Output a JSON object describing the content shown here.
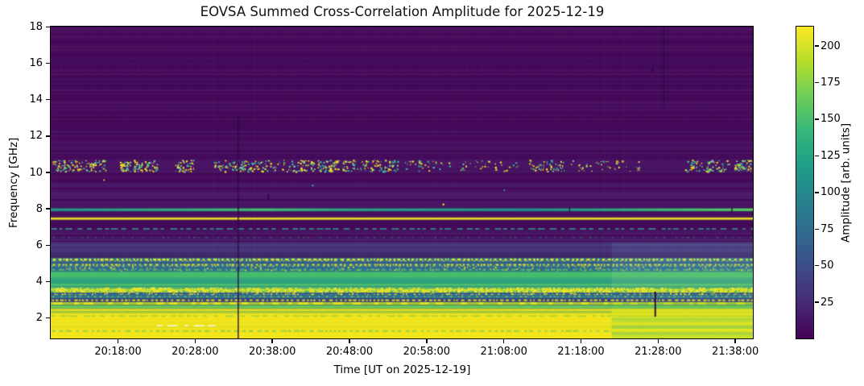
{
  "figure": {
    "background": "#ffffff"
  },
  "chart_data": {
    "type": "heatmap",
    "title": "EOVSA Summed Cross-Correlation Amplitude for 2025-12-19",
    "xlabel": "Time [UT on 2025-12-19]",
    "ylabel": "Frequency [GHz]",
    "x_ticks": [
      "20:18:00",
      "20:28:00",
      "20:38:00",
      "20:48:00",
      "20:58:00",
      "21:08:00",
      "21:18:00",
      "21:28:00",
      "21:38:00"
    ],
    "y_ticks": [
      2,
      4,
      6,
      8,
      10,
      12,
      14,
      16,
      18
    ],
    "x_range": [
      "20:09:20",
      "21:40:20"
    ],
    "ylim": [
      0.85,
      18
    ],
    "grid": false,
    "colorbar": {
      "label": "Amplitude [arb. units]",
      "ticks": [
        25,
        50,
        75,
        100,
        125,
        150,
        175,
        200
      ],
      "vmin": 0,
      "vmax": 213,
      "colormap": "viridis",
      "gradient": [
        "#440154",
        "#482878",
        "#3e4a89",
        "#31688e",
        "#26828e",
        "#1f9e89",
        "#35b779",
        "#6ece58",
        "#b5de2b",
        "#fde725"
      ]
    },
    "heatmap": {
      "background": "#45095a",
      "texture": {
        "seed": 987654321,
        "h_alpha_under": 0.05,
        "h_alpha_over": 0.018,
        "v_alpha": 0.015
      },
      "bands": [
        {
          "type": "solid",
          "f": [
            11.15,
            11.5
          ],
          "color": "#4a1566",
          "alpha": 0.55
        },
        {
          "type": "solid",
          "f": [
            12.1,
            12.35
          ],
          "color": "#481263",
          "alpha": 0.5
        },
        {
          "type": "solid",
          "f": [
            14.8,
            15.1
          ],
          "color": "#481263",
          "alpha": 0.45
        },
        {
          "type": "solid",
          "f": [
            15.9,
            16.15
          ],
          "color": "#481263",
          "alpha": 0.4
        },
        {
          "type": "solid",
          "f": [
            13.4,
            13.6
          ],
          "color": "#481263",
          "alpha": 0.35
        },
        {
          "type": "solid",
          "f": [
            9.95,
            10.75
          ],
          "color": "#4c1a6b",
          "alpha": 0.5
        },
        {
          "type": "solid",
          "f": [
            9.15,
            9.4
          ],
          "color": "#4d2474",
          "alpha": 0.6
        },
        {
          "type": "solid",
          "f": [
            8.55,
            8.95
          ],
          "color": "#4c2271",
          "alpha": 0.6
        },
        {
          "type": "solid",
          "f": [
            8.1,
            8.4
          ],
          "color": "#4a1d6c",
          "alpha": 0.55
        },
        {
          "type": "solid",
          "f": [
            6.55,
            6.8
          ],
          "color": "#4a1f6e",
          "alpha": 0.5
        },
        {
          "type": "solid",
          "f": [
            6.2,
            6.45
          ],
          "color": "#483a78",
          "alpha": 0.35
        },
        {
          "type": "speckle",
          "f": [
            10.05,
            10.68
          ],
          "colors": [
            "#f8e626",
            "#e4e33c",
            "#29b694",
            "#3ec8a8",
            "#79d6b9"
          ],
          "weights": [
            0.42,
            0.13,
            0.22,
            0.15,
            0.08
          ],
          "count": 900,
          "dot": [
            1,
            2.3
          ],
          "clusters": [
            [
              0.04,
              0.038,
              0.95
            ],
            [
              0.125,
              0.027,
              0.85
            ],
            [
              0.19,
              0.015,
              0.4
            ],
            [
              0.255,
              0.023,
              0.5
            ],
            [
              0.323,
              0.052,
              1.0
            ],
            [
              0.395,
              0.015,
              0.5
            ],
            [
              0.455,
              0.04,
              0.9
            ],
            [
              0.535,
              0.035,
              0.3
            ],
            [
              0.62,
              0.045,
              0.3
            ],
            [
              0.705,
              0.026,
              0.45
            ],
            [
              0.79,
              0.05,
              0.35
            ],
            [
              0.935,
              0.032,
              0.65
            ],
            [
              0.985,
              0.012,
              0.5
            ]
          ]
        },
        {
          "type": "hline",
          "f": 7.93,
          "h": 6,
          "color": "#2a8f8c",
          "alpha": 0.22
        },
        {
          "type": "hline",
          "f": 7.93,
          "h": 3.2,
          "gradient": [
            [
              0,
              "#23938c"
            ],
            [
              0.18,
              "#33ab80"
            ],
            [
              0.3,
              "#46bf6e"
            ],
            [
              0.42,
              "#2da085"
            ],
            [
              0.55,
              "#27988a"
            ],
            [
              0.68,
              "#21908d"
            ],
            [
              0.78,
              "#2aa183"
            ],
            [
              0.88,
              "#3fba72"
            ],
            [
              0.97,
              "#52c766"
            ],
            [
              1,
              "#5ecf5f"
            ]
          ]
        },
        {
          "type": "hline",
          "f": 7.44,
          "h": 4.2,
          "color": "#c8b93a",
          "alpha": 0.28
        },
        {
          "type": "hline",
          "f": 7.44,
          "h": 2.3,
          "color": "#eee41c"
        },
        {
          "type": "dashline",
          "f": 6.87,
          "h": 1.8,
          "color": "#2f9f8c",
          "dash": [
            6,
            5
          ],
          "alpha": 0.85
        },
        {
          "type": "dashline",
          "f": 6.4,
          "h": 1.4,
          "color": "#2f9f8c",
          "dash": [
            2,
            9
          ],
          "alpha": 0.55
        },
        {
          "type": "solid",
          "f": [
            5.55,
            6.15
          ],
          "color": "#45397a",
          "alpha": 0.8
        },
        {
          "type": "hline",
          "f": 6.0,
          "h": 2.5,
          "color": "#4a4284",
          "alpha": 0.6
        },
        {
          "type": "hline",
          "f": 5.72,
          "h": 2,
          "color": "#4a4284",
          "alpha": 0.5
        },
        {
          "type": "solid",
          "f": [
            5.28,
            5.55
          ],
          "color": "#3f2f6a",
          "alpha": 0.85
        },
        {
          "type": "solid",
          "f": [
            4.55,
            5.28
          ],
          "color": "#2e7390"
        },
        {
          "type": "solid",
          "f": [
            4.97,
            5.07
          ],
          "color": "#3b5584",
          "alpha": 0.85
        },
        {
          "type": "solid",
          "f": [
            4.68,
            4.76
          ],
          "color": "#35608a",
          "alpha": 0.7
        },
        {
          "type": "dashline",
          "f": 5.19,
          "h": 2.4,
          "color": "#f4e622",
          "dash": [
            3,
            2.5
          ],
          "alpha": 0.95
        },
        {
          "type": "dashline",
          "f": 5.12,
          "h": 1.5,
          "color": "#e9e53a",
          "dash": [
            2,
            5
          ],
          "alpha": 0.65
        },
        {
          "type": "dashline",
          "f": 4.9,
          "h": 2.2,
          "color": "#f4e622",
          "dash": [
            2.5,
            3
          ],
          "alpha": 0.9
        },
        {
          "type": "dashline",
          "f": 4.82,
          "h": 1.5,
          "color": "#f4e622",
          "dash": [
            2,
            6
          ],
          "alpha": 0.6
        },
        {
          "type": "speckle",
          "f": [
            4.58,
            4.8
          ],
          "colors": [
            "#f4e622",
            "#6ec654"
          ],
          "weights": [
            0.8,
            0.2
          ],
          "count": 140,
          "dot": [
            1,
            1.8
          ]
        },
        {
          "type": "dashline",
          "f": 4.63,
          "h": 2,
          "color": "#5ec25f",
          "dash": [
            5,
            4
          ],
          "alpha": 0.8
        },
        {
          "type": "solid",
          "f": [
            3.68,
            4.55
          ],
          "color": "#36a977"
        },
        {
          "type": "solid",
          "f": [
            4.2,
            4.48
          ],
          "color": "#47bd6d"
        },
        {
          "type": "solid",
          "f": [
            3.86,
            4.12
          ],
          "color": "#2fa07e",
          "alpha": 0.9
        },
        {
          "type": "hline",
          "f": 3.79,
          "h": 2.2,
          "color": "#55c763",
          "alpha": 0.9
        },
        {
          "type": "solid",
          "f": [
            3.68,
            3.75
          ],
          "color": "#2d9b81",
          "alpha": 0.8
        },
        {
          "type": "solid",
          "f": [
            3.37,
            3.68
          ],
          "color": "#55b96c"
        },
        {
          "type": "speckle",
          "f": [
            3.38,
            3.66
          ],
          "colors": [
            "#f6e623",
            "#ffee3d",
            "#b5de2b"
          ],
          "weights": [
            0.65,
            0.2,
            0.15
          ],
          "count": 1500,
          "dot": [
            1.2,
            2.6
          ]
        },
        {
          "type": "hline",
          "f": 3.52,
          "h": 1.6,
          "color": "#d9e326",
          "alpha": 0.85
        },
        {
          "type": "solid",
          "f": [
            3.24,
            3.37
          ],
          "color": "#35618b"
        },
        {
          "type": "speckle",
          "f": [
            3.25,
            3.36
          ],
          "colors": [
            "#f6e623"
          ],
          "weights": [
            1
          ],
          "count": 260,
          "dot": [
            1,
            2
          ]
        },
        {
          "type": "solid",
          "f": [
            3.06,
            3.24
          ],
          "color": "#2e7a8e"
        },
        {
          "type": "dashline",
          "f": 3.15,
          "h": 1.6,
          "color": "#f0e522",
          "dash": [
            2,
            6
          ],
          "alpha": 0.6
        },
        {
          "type": "solid",
          "f": [
            2.84,
            3.06
          ],
          "color": "#394a7c"
        },
        {
          "type": "dashline",
          "f": 2.95,
          "h": 2,
          "color": "#f0e522",
          "dash": [
            3,
            3
          ],
          "alpha": 0.9
        },
        {
          "type": "hline",
          "f": 2.78,
          "h": 3,
          "color": "#b7da2f",
          "alpha": 0.9
        },
        {
          "type": "dashline",
          "f": 2.78,
          "h": 3,
          "color": "#eae41f",
          "dash": [
            9,
            14
          ],
          "alpha": 0.9
        },
        {
          "type": "solid",
          "f": [
            2.48,
            2.7
          ],
          "color": "#5ec05f"
        },
        {
          "type": "hline",
          "f": 2.59,
          "h": 1.5,
          "color": "#7ccb4f",
          "alpha": 0.7
        },
        {
          "type": "solid",
          "f": [
            2.35,
            2.48
          ],
          "color": "#e9e41e"
        },
        {
          "type": "solid",
          "f": [
            2.26,
            2.35
          ],
          "color": "#9cd43c"
        },
        {
          "type": "solid",
          "f": [
            0.85,
            2.26
          ],
          "color": "#f3e51c"
        },
        {
          "type": "hline",
          "f": 2.2,
          "h": 1.5,
          "color": "#cfe223",
          "alpha": 0.6
        },
        {
          "type": "dashline",
          "f": 2.08,
          "h": 2,
          "color": "#8fcf45",
          "dash": [
            7,
            6
          ],
          "alpha": 0.6
        },
        {
          "type": "hline",
          "f": 1.73,
          "h": 1.6,
          "color": "#d5e321",
          "alpha": 0.5
        },
        {
          "type": "hline",
          "f": 1.47,
          "h": 1.8,
          "color": "#cde124",
          "alpha": 0.55
        },
        {
          "type": "dashline",
          "f": 1.26,
          "h": 2.4,
          "color": "#8fcf45",
          "dash": [
            5,
            4
          ],
          "alpha": 0.75
        },
        {
          "type": "dashline",
          "f": 1.55,
          "h": 2,
          "color": "#fdfad2",
          "dash": [
            9,
            6
          ],
          "alpha": 0.85,
          "x": [
            0.15,
            0.235
          ]
        }
      ],
      "overlays": [
        {
          "type": "rect",
          "x": [
            0.799,
            1
          ],
          "f": [
            4.55,
            6.15
          ],
          "color": "rgba(150,205,235,0.10)"
        },
        {
          "type": "rect",
          "x": [
            0.799,
            1
          ],
          "f": [
            3.68,
            4.55
          ],
          "color": "rgba(210,240,170,0.12)"
        },
        {
          "type": "rect",
          "x": [
            0.799,
            1
          ],
          "f": [
            2.84,
            3.24
          ],
          "color": "rgba(150,205,235,0.06)"
        },
        {
          "type": "rect",
          "x": [
            0.799,
            1
          ],
          "f": [
            2.48,
            2.84
          ],
          "color": "rgba(110,198,84,0.25)"
        },
        {
          "type": "hstripes",
          "x": [
            0.799,
            1
          ],
          "f": [
            0.85,
            2.48
          ],
          "colors": [
            "#c3df2c",
            "#8ecf49",
            "#dde422",
            "#6ec654",
            "#e4e61f",
            "#a8d73a"
          ]
        }
      ],
      "events": [
        {
          "x": 0.267,
          "f": [
            0.85,
            13.1
          ],
          "color": "rgba(45,10,70,0.85)",
          "w": 1.6
        },
        {
          "x": 0.873,
          "f": [
            13.55,
            18
          ],
          "color": "rgba(30,5,50,0.5)",
          "w": 1.2
        },
        {
          "x": 0.861,
          "f": [
            2.05,
            3.42
          ],
          "color": "rgba(42,8,62,0.95)",
          "w": 2
        },
        {
          "x": 0.31,
          "f": [
            8.44,
            8.78
          ],
          "color": "rgba(42,8,62,0.8)",
          "w": 2
        },
        {
          "x": 0.857,
          "f": [
            15.45,
            15.72
          ],
          "color": "rgba(30,5,50,0.6)",
          "w": 2
        },
        {
          "x": 0.739,
          "f": [
            7.8,
            8.06
          ],
          "color": "rgba(42,8,62,0.8)",
          "w": 1.5
        },
        {
          "x": 0.97,
          "f": [
            7.8,
            8.06
          ],
          "color": "rgba(42,8,62,0.8)",
          "w": 1.5
        }
      ],
      "stray_dots": [
        {
          "x": 0.558,
          "f": 8.27,
          "color": "#f6e623",
          "r": 1.4
        },
        {
          "x": 0.372,
          "f": 9.3,
          "color": "#3ec8a8",
          "r": 1.2
        },
        {
          "x": 0.645,
          "f": 9.05,
          "color": "#2ab695",
          "r": 1.1
        },
        {
          "x": 0.075,
          "f": 9.6,
          "color": "#f6e623",
          "r": 1.1
        }
      ]
    }
  }
}
